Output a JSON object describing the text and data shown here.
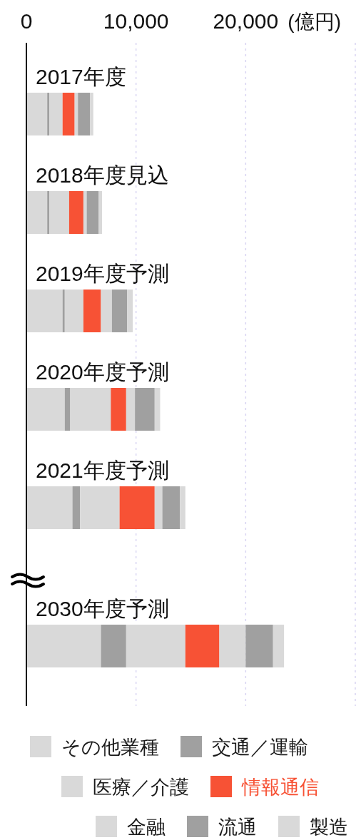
{
  "chart_data": {
    "type": "bar",
    "orientation": "horizontal",
    "stacked": true,
    "xlabel": "(億円)",
    "categories": [
      "2017年度",
      "2018年度見込",
      "2019年度予測",
      "2020年度予測",
      "2021年度予測",
      "2030年度予測"
    ],
    "series": [
      {
        "name": "その他業種",
        "color": "#d9d9d9",
        "values": [
          1900,
          1900,
          3300,
          3500,
          4200,
          6800
        ]
      },
      {
        "name": "交通／運輸",
        "color": "#a0a0a0",
        "values": [
          200,
          200,
          200,
          500,
          700,
          2300
        ]
      },
      {
        "name": "医療／介護",
        "color": "#d9d9d9",
        "values": [
          1200,
          1800,
          1700,
          3700,
          3600,
          5400
        ]
      },
      {
        "name": "情報通信",
        "color": "#f75235",
        "values": [
          1100,
          1300,
          1600,
          1400,
          3200,
          3100
        ]
      },
      {
        "name": "金融",
        "color": "#d9d9d9",
        "values": [
          300,
          300,
          1000,
          800,
          700,
          2400
        ]
      },
      {
        "name": "流通",
        "color": "#a0a0a0",
        "values": [
          1100,
          1100,
          1400,
          1800,
          1600,
          2500
        ]
      },
      {
        "name": "製造",
        "color": "#d9d9d9",
        "values": [
          300,
          300,
          500,
          500,
          500,
          1000
        ]
      }
    ],
    "xlim": [
      0,
      30000
    ],
    "xticks": [
      0,
      {
        "value": 10000,
        "label": "10,000"
      },
      {
        "value": 20000,
        "label": "20,000"
      },
      {
        "value": 30000,
        "label": null
      }
    ],
    "grid": "x",
    "legend": "bottom"
  }
}
